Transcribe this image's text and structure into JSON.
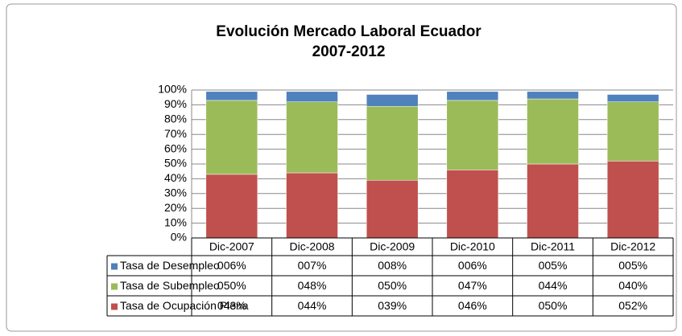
{
  "chart_data": {
    "type": "bar",
    "title": "Evolución Mercado Laboral Ecuador",
    "subtitle": "2007-2012",
    "categories": [
      "Dic-2007",
      "Dic-2008",
      "Dic-2009",
      "Dic-2010",
      "Dic-2011",
      "Dic-2012"
    ],
    "series": [
      {
        "name": "Tasa de Desempleo",
        "color": "#4f81bd",
        "values": [
          6,
          7,
          8,
          6,
          5,
          5
        ],
        "value_labels": [
          "006%",
          "007%",
          "008%",
          "006%",
          "005%",
          "005%"
        ]
      },
      {
        "name": "Tasa de Subempleo",
        "color": "#9bbb59",
        "values": [
          50,
          48,
          50,
          47,
          44,
          40
        ],
        "value_labels": [
          "050%",
          "048%",
          "050%",
          "047%",
          "044%",
          "040%"
        ]
      },
      {
        "name": "Tasa de Ocupación Plena",
        "color": "#c0504d",
        "values": [
          43,
          44,
          39,
          46,
          50,
          52
        ],
        "value_labels": [
          "043%",
          "044%",
          "039%",
          "046%",
          "050%",
          "052%"
        ]
      }
    ],
    "stacked": true,
    "ylim": [
      0,
      100
    ],
    "yticks": [
      {
        "value": 0,
        "label": "0%"
      },
      {
        "value": 10,
        "label": "10%"
      },
      {
        "value": 20,
        "label": "20%"
      },
      {
        "value": 30,
        "label": "30%"
      },
      {
        "value": 40,
        "label": "40%"
      },
      {
        "value": 50,
        "label": "50%"
      },
      {
        "value": 60,
        "label": "60%"
      },
      {
        "value": 70,
        "label": "70%"
      },
      {
        "value": 80,
        "label": "80%"
      },
      {
        "value": 90,
        "label": "90%"
      },
      {
        "value": 100,
        "label": "100%"
      }
    ],
    "grid": true
  }
}
